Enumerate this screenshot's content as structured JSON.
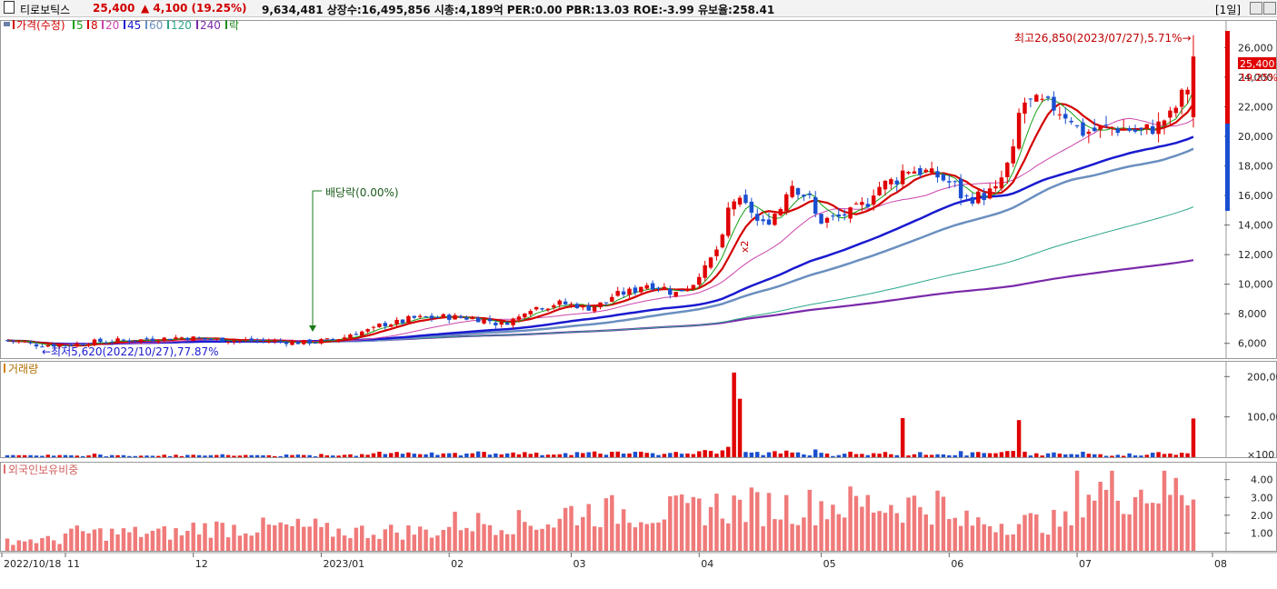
{
  "header": {
    "stock_name": "티로보틱스",
    "price": "25,400",
    "change": "▲ 4,100 (19.25%)",
    "stats": "9,634,481  상장수:16,495,856 시총:4,189억 PER:0.00 PBR:13.03 ROE:-3.99 유보율:258.41",
    "period": "[1일]"
  },
  "panels": {
    "price": {
      "legend": [
        "가격(수정)",
        "5",
        "8",
        "20",
        "45",
        "60",
        "120",
        "240",
        "락"
      ],
      "legend_colors": [
        "#d40000",
        "#16a016",
        "#d40000",
        "#cc44aa",
        "#1a1ad0",
        "#6a8fc0",
        "#2aa58a",
        "#7a2aaa",
        "#228822"
      ],
      "high_label": "최고26,850(2023/07/27),5.71%→",
      "low_label": "←최저5,620(2022/10/27),77.87%",
      "dividend_label": "배당락(0.00%)",
      "x2_label": "x2",
      "current_price_label": "25,400",
      "current_change_label": "19.25%",
      "y_ticks": [
        "26,000",
        "24,000",
        "22,000",
        "20,000",
        "18,000",
        "16,000",
        "14,000",
        "12,000",
        "10,000",
        "8,000",
        "6,000"
      ]
    },
    "volume": {
      "legend": "거래량",
      "y_ticks": [
        "200,000",
        "100,000",
        "×100"
      ]
    },
    "foreign": {
      "legend": "외국인보유비중",
      "y_ticks": [
        "4.00",
        "3.00",
        "2.00",
        "1.00"
      ]
    }
  },
  "x_axis": {
    "labels": [
      "2022/10/18",
      "11",
      "12",
      "2023/01",
      "02",
      "03",
      "04",
      "05",
      "06",
      "07",
      "08"
    ]
  },
  "chart_data": [
    {
      "type": "candlestick",
      "title": "가격(수정)",
      "period": "2022/10/18 - 2023/07/31",
      "ylim": [
        5000,
        27500
      ],
      "ohlc_weekly_approx": [
        {
          "date": "2022-10-18",
          "close": 6200
        },
        {
          "date": "2022-10-25",
          "close": 5900
        },
        {
          "date": "2022-11-01",
          "close": 5900
        },
        {
          "date": "2022-11-08",
          "close": 6100
        },
        {
          "date": "2022-11-15",
          "close": 6200
        },
        {
          "date": "2022-11-22",
          "close": 6300
        },
        {
          "date": "2022-11-29",
          "close": 6400
        },
        {
          "date": "2022-12-06",
          "close": 6250
        },
        {
          "date": "2022-12-13",
          "close": 6200
        },
        {
          "date": "2022-12-20",
          "close": 6150
        },
        {
          "date": "2022-12-27",
          "close": 6050
        },
        {
          "date": "2023-01-03",
          "close": 6200
        },
        {
          "date": "2023-01-10",
          "close": 6700
        },
        {
          "date": "2023-01-17",
          "close": 7300
        },
        {
          "date": "2023-01-24",
          "close": 7700
        },
        {
          "date": "2023-01-31",
          "close": 7800
        },
        {
          "date": "2023-02-07",
          "close": 7700
        },
        {
          "date": "2023-02-14",
          "close": 7300
        },
        {
          "date": "2023-02-21",
          "close": 8400
        },
        {
          "date": "2023-02-28",
          "close": 8700
        },
        {
          "date": "2023-03-07",
          "close": 8400
        },
        {
          "date": "2023-03-14",
          "close": 9300
        },
        {
          "date": "2023-03-21",
          "close": 10000
        },
        {
          "date": "2023-03-28",
          "close": 9400
        },
        {
          "date": "2023-04-04",
          "close": 11000
        },
        {
          "date": "2023-04-11",
          "close": 15700
        },
        {
          "date": "2023-04-18",
          "close": 14000
        },
        {
          "date": "2023-04-25",
          "close": 16800
        },
        {
          "date": "2023-05-02",
          "close": 14300
        },
        {
          "date": "2023-05-09",
          "close": 14800
        },
        {
          "date": "2023-05-16",
          "close": 16600
        },
        {
          "date": "2023-05-23",
          "close": 17800
        },
        {
          "date": "2023-05-30",
          "close": 17300
        },
        {
          "date": "2023-06-06",
          "close": 15800
        },
        {
          "date": "2023-06-13",
          "close": 16300
        },
        {
          "date": "2023-06-20",
          "close": 22300
        },
        {
          "date": "2023-06-27",
          "close": 22000
        },
        {
          "date": "2023-07-04",
          "close": 20300
        },
        {
          "date": "2023-07-11",
          "close": 20600
        },
        {
          "date": "2023-07-18",
          "close": 20300
        },
        {
          "date": "2023-07-25",
          "close": 21300
        },
        {
          "date": "2023-07-31",
          "close": 25400
        }
      ],
      "high": {
        "value": 26850,
        "date": "2023-07-27"
      },
      "low": {
        "value": 5620,
        "date": "2022-10-27"
      },
      "moving_averages": [
        "5",
        "8",
        "20",
        "45",
        "60",
        "120",
        "240"
      ]
    },
    {
      "type": "bar",
      "title": "거래량",
      "unit": "×100",
      "ylim": [
        0,
        230000
      ],
      "peaks": [
        {
          "date": "2023-04-11",
          "value": 210000
        },
        {
          "date": "2023-04-12",
          "value": 145000
        },
        {
          "date": "2023-05-22",
          "value": 97000
        },
        {
          "date": "2023-06-19",
          "value": 92000
        },
        {
          "date": "2023-07-31",
          "value": 96000
        }
      ]
    },
    {
      "type": "bar",
      "title": "외국인보유비중",
      "ylim": [
        0,
        4.8
      ],
      "values_approx_monthly": [
        {
          "month": "2022-10",
          "value": 0.6
        },
        {
          "month": "2022-11",
          "value": 1.0
        },
        {
          "month": "2022-12",
          "value": 1.3
        },
        {
          "month": "2023-01",
          "value": 1.1
        },
        {
          "month": "2023-02",
          "value": 1.6
        },
        {
          "month": "2023-03",
          "value": 2.2
        },
        {
          "month": "2023-04",
          "value": 2.5
        },
        {
          "month": "2023-05",
          "value": 2.6
        },
        {
          "month": "2023-06",
          "value": 1.6
        },
        {
          "month": "2023-07",
          "value": 3.4
        }
      ]
    }
  ]
}
